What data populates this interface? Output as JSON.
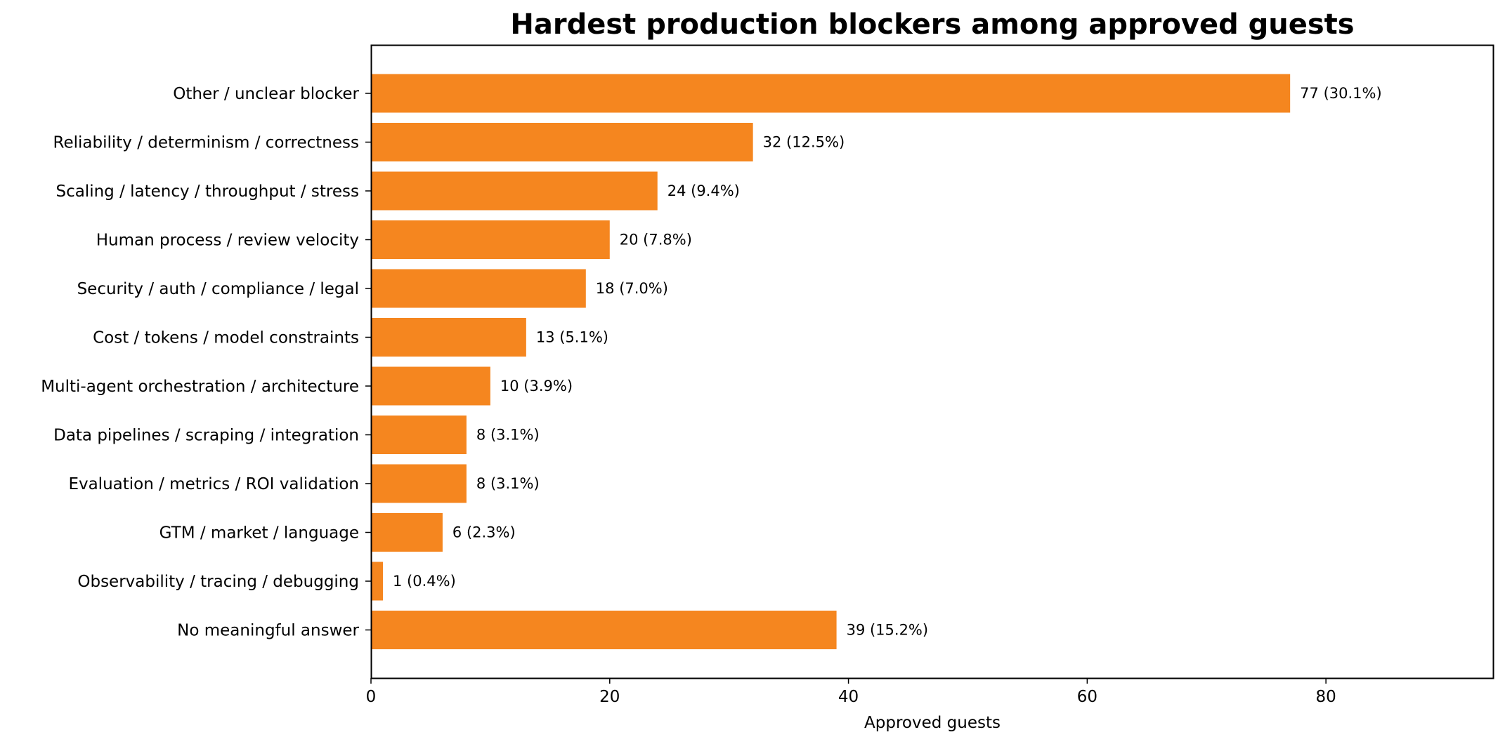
{
  "chart_data": {
    "type": "bar",
    "orientation": "horizontal",
    "title": "Hardest production blockers among approved guests",
    "xlabel": "Approved guests",
    "ylabel": "",
    "xlim": [
      0,
      94
    ],
    "xticks": [
      0,
      20,
      40,
      60,
      80
    ],
    "grid": false,
    "bar_color": "#f5861f",
    "categories": [
      "Other / unclear blocker",
      "Reliability / determinism / correctness",
      "Scaling / latency / throughput / stress",
      "Human process / review velocity",
      "Security / auth / compliance / legal",
      "Cost / tokens / model constraints",
      "Multi-agent orchestration / architecture",
      "Data pipelines / scraping / integration",
      "Evaluation / metrics / ROI validation",
      "GTM / market / language",
      "Observability / tracing / debugging",
      "No meaningful answer"
    ],
    "values": [
      77,
      32,
      24,
      20,
      18,
      13,
      10,
      8,
      8,
      6,
      1,
      39
    ],
    "data_labels": [
      "77 (30.1%)",
      "32 (12.5%)",
      "24 (9.4%)",
      "20 (7.8%)",
      "18 (7.0%)",
      "13 (5.1%)",
      "10 (3.9%)",
      "8 (3.1%)",
      "8 (3.1%)",
      "6 (2.3%)",
      "1 (0.4%)",
      "39 (15.2%)"
    ]
  }
}
